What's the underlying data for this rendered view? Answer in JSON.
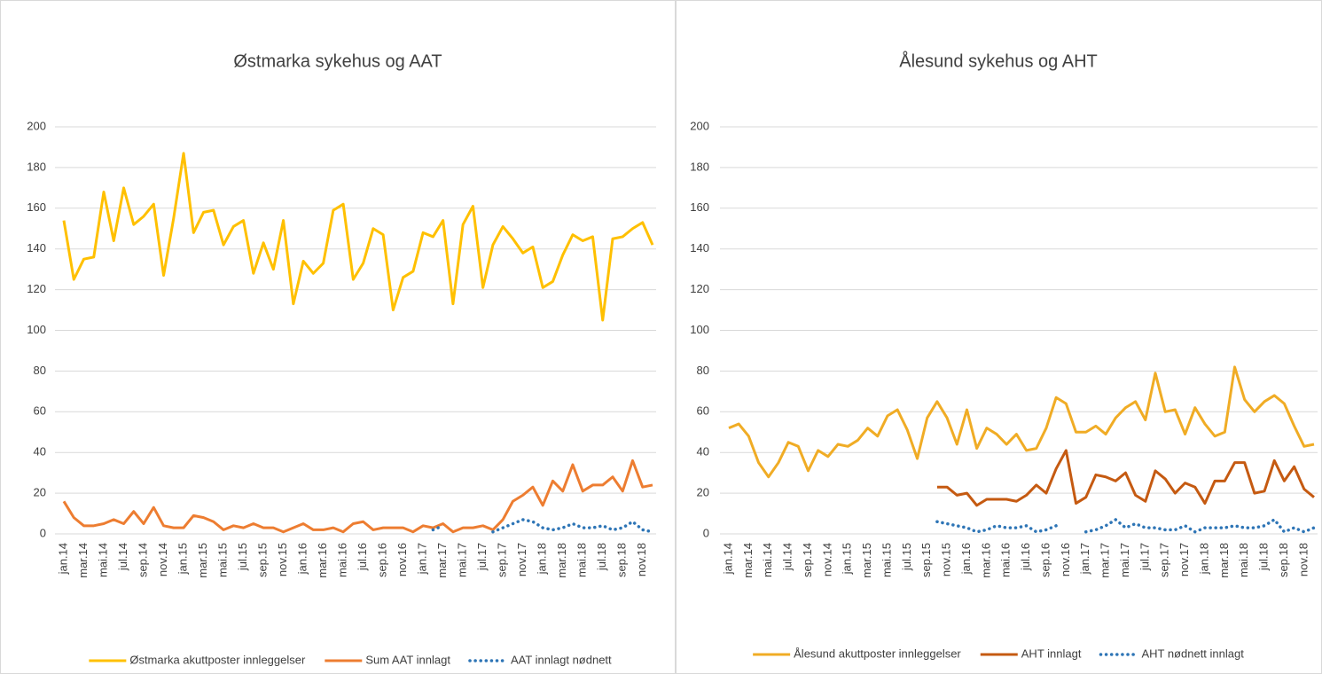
{
  "chart_data": [
    {
      "type": "line",
      "title": "Østmarka  sykehus og AAT",
      "categories": [
        "jan.14",
        null,
        "mar.14",
        null,
        "mai.14",
        null,
        "jul.14",
        null,
        "sep.14",
        null,
        "nov.14",
        null,
        "jan.15",
        null,
        "mar.15",
        null,
        "mai.15",
        null,
        "jul.15",
        null,
        "sep.15",
        null,
        "nov.15",
        null,
        "jan.16",
        null,
        "mar.16",
        null,
        "mai.16",
        null,
        "jul.16",
        null,
        "sep.16",
        null,
        "nov.16",
        null,
        "jan.17",
        null,
        "mar.17",
        null,
        "mai.17",
        null,
        "jul.17",
        null,
        "sep.17",
        null,
        "nov.17",
        null,
        "jan.18",
        null,
        "mar.18",
        null,
        "mai.18",
        null,
        "jul.18",
        null,
        "sep.18",
        null,
        "nov.18",
        null
      ],
      "series": [
        {
          "name": "Østmarka akuttposter innleggelser",
          "color": "#ffc000",
          "style": "solid",
          "values": [
            154,
            125,
            135,
            136,
            168,
            144,
            170,
            152,
            156,
            162,
            127,
            155,
            187,
            148,
            158,
            159,
            142,
            151,
            154,
            128,
            143,
            130,
            154,
            113,
            134,
            128,
            133,
            159,
            162,
            125,
            133,
            150,
            147,
            110,
            126,
            129,
            148,
            146,
            154,
            113,
            152,
            161,
            121,
            142,
            151,
            145,
            138,
            141,
            121,
            124,
            137,
            147,
            144,
            146,
            105,
            145,
            146,
            150,
            153,
            142
          ]
        },
        {
          "name": "Sum AAT innlagt",
          "color": "#ed7d31",
          "style": "solid",
          "values": [
            16,
            8,
            4,
            4,
            5,
            7,
            5,
            11,
            5,
            13,
            4,
            3,
            3,
            9,
            8,
            6,
            2,
            4,
            3,
            5,
            3,
            3,
            1,
            3,
            5,
            2,
            2,
            3,
            1,
            5,
            6,
            2,
            3,
            3,
            3,
            1,
            4,
            3,
            5,
            1,
            3,
            3,
            4,
            2,
            7,
            16,
            19,
            23,
            14,
            26,
            21,
            34,
            21,
            24,
            24,
            28,
            21,
            36,
            23,
            24
          ]
        },
        {
          "name": "AAT innlagt nødnett",
          "color": "#2e75b6",
          "style": "dotted",
          "values": [
            null,
            null,
            null,
            null,
            null,
            null,
            null,
            null,
            null,
            null,
            null,
            null,
            null,
            null,
            null,
            null,
            null,
            null,
            null,
            null,
            null,
            null,
            null,
            null,
            null,
            null,
            null,
            null,
            null,
            null,
            null,
            null,
            null,
            null,
            null,
            null,
            null,
            2,
            4,
            null,
            null,
            null,
            null,
            1,
            3,
            5,
            7,
            6,
            3,
            2,
            3,
            5,
            3,
            3,
            4,
            2,
            3,
            6,
            2,
            1
          ]
        }
      ],
      "ylim": [
        0,
        200
      ],
      "yticks": [
        0,
        20,
        40,
        60,
        80,
        100,
        120,
        140,
        160,
        180,
        200
      ],
      "grid": true,
      "legend": "bottom"
    },
    {
      "type": "line",
      "title": "Ålesund  sykehus og AHT",
      "categories": [
        "jan.14",
        null,
        "mar.14",
        null,
        "mai.14",
        null,
        "jul.14",
        null,
        "sep.14",
        null,
        "nov.14",
        null,
        "jan.15",
        null,
        "mar.15",
        null,
        "mai.15",
        null,
        "jul.15",
        null,
        "sep.15",
        null,
        "nov.15",
        null,
        "jan.16",
        null,
        "mar.16",
        null,
        "mai.16",
        null,
        "jul.16",
        null,
        "sep.16",
        null,
        "nov.16",
        null,
        "jan.17",
        null,
        "mar.17",
        null,
        "mai.17",
        null,
        "jul.17",
        null,
        "sep.17",
        null,
        "nov.17",
        null,
        "jan.18",
        null,
        "mar.18",
        null,
        "mai.18",
        null,
        "jul.18",
        null,
        "sep.18",
        null,
        "nov.18",
        null
      ],
      "series": [
        {
          "name": "Ålesund akuttposter innleggelser",
          "color": "#f0ac25",
          "style": "solid",
          "values": [
            52,
            54,
            48,
            35,
            28,
            35,
            45,
            43,
            31,
            41,
            38,
            44,
            43,
            46,
            52,
            48,
            58,
            61,
            51,
            37,
            57,
            65,
            57,
            44,
            61,
            42,
            52,
            49,
            44,
            49,
            41,
            42,
            52,
            67,
            64,
            50,
            50,
            53,
            49,
            57,
            62,
            65,
            56,
            79,
            60,
            61,
            49,
            62,
            54,
            48,
            50,
            82,
            66,
            60,
            65,
            68,
            64,
            53,
            43,
            44
          ]
        },
        {
          "name": "AHT innlagt",
          "color": "#c55a11",
          "style": "solid",
          "values": [
            null,
            null,
            null,
            null,
            null,
            null,
            null,
            null,
            null,
            null,
            null,
            null,
            null,
            null,
            null,
            null,
            null,
            null,
            null,
            null,
            null,
            23,
            23,
            19,
            20,
            14,
            17,
            17,
            17,
            16,
            19,
            24,
            20,
            32,
            41,
            15,
            18,
            29,
            28,
            26,
            30,
            19,
            16,
            31,
            27,
            20,
            25,
            23,
            15,
            26,
            26,
            35,
            35,
            20,
            21,
            36,
            26,
            33,
            22,
            18
          ]
        },
        {
          "name": "AHT nødnett innlagt",
          "color": "#2e75b6",
          "style": "dotted",
          "values": [
            null,
            null,
            null,
            null,
            null,
            null,
            null,
            null,
            null,
            null,
            null,
            null,
            null,
            null,
            null,
            null,
            null,
            null,
            null,
            null,
            null,
            6,
            5,
            4,
            3,
            1,
            2,
            4,
            3,
            3,
            4,
            1,
            2,
            4,
            null,
            null,
            1,
            2,
            4,
            7,
            3,
            5,
            3,
            3,
            2,
            2,
            4,
            1,
            3,
            3,
            3,
            4,
            3,
            3,
            4,
            7,
            1,
            3,
            1,
            3
          ]
        }
      ],
      "ylim": [
        0,
        200
      ],
      "yticks": [
        0,
        20,
        40,
        60,
        80,
        100,
        120,
        140,
        160,
        180,
        200
      ],
      "grid": true,
      "legend": "bottom"
    }
  ]
}
